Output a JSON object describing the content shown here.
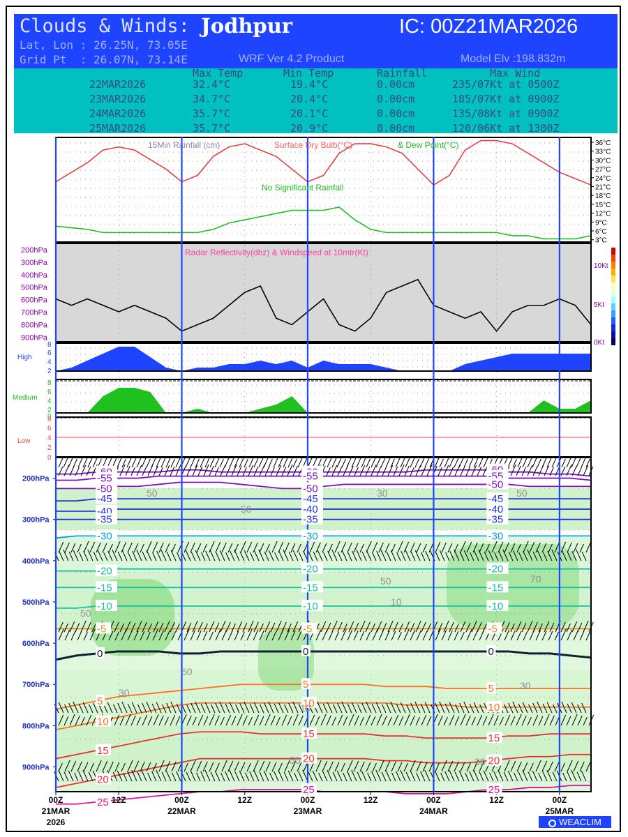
{
  "header": {
    "title_prefix": "Clouds & Winds:",
    "location": "Jodhpur",
    "ic": "IC: 00Z21MAR2026",
    "latlon": "Lat, Lon : 26.25N, 73.05E",
    "gridpt": "Grid Pt  : 26.07N, 73.14E",
    "product": "WRF Ver 4.2 Product",
    "elevation": "Model Elv :198.832m"
  },
  "summary": {
    "columns": [
      "Max Temp",
      "Min Temp",
      "Rainfall",
      "Max Wind"
    ],
    "rows": [
      {
        "date": "22MAR2026",
        "max_temp": "32.4°C",
        "min_temp": "19.4°C",
        "rain": "0.00cm",
        "wind": "235/07Kt at 0500Z"
      },
      {
        "date": "23MAR2026",
        "max_temp": "34.7°C",
        "min_temp": "20.4°C",
        "rain": "0.00cm",
        "wind": "185/07Kt at 0900Z"
      },
      {
        "date": "24MAR2026",
        "max_temp": "35.7°C",
        "min_temp": "20.1°C",
        "rain": "0.00cm",
        "wind": "135/08Kt at 0900Z"
      },
      {
        "date": "25MAR2026",
        "max_temp": "35.7°C",
        "min_temp": "20.9°C",
        "rain": "0.00cm",
        "wind": "120/06Kt at 1300Z"
      }
    ]
  },
  "colors": {
    "header_blue": "#1f44ff",
    "summary_teal": "#00c0c0",
    "temp_red": "#e84040",
    "dew_green": "#20c020",
    "high_cloud": "#1f44ff",
    "medium_cloud": "#20c020",
    "low_cloud": "#ff4040",
    "radar_bg": "#d8d8d8",
    "day_line": "#1f44ff"
  },
  "chart_data": [
    {
      "type": "line",
      "title_parts": [
        "15Min Rainfall (cm)",
        "Surface Dry Bulb(°C)",
        "& Dew Point(°C)"
      ],
      "annotation": "No Significant Rainfall",
      "x_hours": [
        0,
        6,
        9,
        12,
        15,
        18,
        21,
        24,
        27,
        30,
        33,
        36,
        39,
        42,
        45,
        48,
        51,
        54,
        57,
        60,
        63,
        66,
        69,
        72,
        75,
        78,
        81,
        84,
        87,
        90,
        93,
        96,
        99,
        102
      ],
      "series": [
        {
          "name": "Surface Dry Bulb(°C)",
          "values": [
            22,
            28,
            32,
            33,
            32,
            29,
            26,
            22,
            24,
            30,
            33,
            34,
            32,
            30,
            26,
            22,
            24,
            31,
            34,
            34,
            33,
            31,
            26,
            21,
            24,
            32,
            35,
            35,
            34,
            31,
            28,
            25,
            23,
            21
          ]
        },
        {
          "name": "Dew Point(°C)",
          "values": [
            8,
            7,
            6,
            6,
            6,
            6,
            6,
            6,
            6,
            7,
            9,
            10,
            11,
            12,
            13,
            13,
            13,
            14,
            10,
            7,
            6,
            6,
            6,
            6,
            6,
            6,
            6,
            6,
            5,
            5,
            4,
            4,
            4,
            5
          ]
        }
      ],
      "y_ticks": [
        "36°C",
        "33°C",
        "30°C",
        "27°C",
        "24°C",
        "21°C",
        "18°C",
        "15°C",
        "12°C",
        "9°C",
        "6°C",
        "3°C"
      ],
      "ylim": [
        3,
        36
      ]
    },
    {
      "type": "line",
      "title": "Radar Reflectivity(dbz) & Windspeed at 10mtr(Kt)",
      "y_left": [
        "200hPa",
        "300hPa",
        "400hPa",
        "500hPa",
        "600hPa",
        "700hPa",
        "800hPa",
        "900hPa"
      ],
      "y_right": [
        "10Kt",
        "5Kt",
        "0Kt"
      ],
      "x_hours": [
        0,
        3,
        6,
        9,
        12,
        15,
        18,
        21,
        24,
        27,
        30,
        33,
        36,
        39,
        42,
        45,
        48,
        51,
        54,
        57,
        60,
        63,
        66,
        69,
        72,
        75,
        78,
        81,
        84,
        87,
        90,
        93,
        96,
        99,
        102
      ],
      "series": [
        {
          "name": "Windspeed at 10mtr(Kt)",
          "values": [
            6,
            5,
            6,
            5,
            4,
            5,
            4,
            3,
            1,
            2,
            3,
            5,
            7,
            8,
            3,
            2,
            4,
            6,
            2,
            1,
            3,
            7,
            8,
            9,
            5,
            4,
            3,
            4,
            1,
            4,
            5,
            5,
            6,
            5,
            2
          ]
        }
      ],
      "ylim": [
        0,
        12
      ]
    },
    {
      "type": "area",
      "panels": [
        {
          "label": "High",
          "y_ticks": [
            "8",
            "6",
            "4",
            "2"
          ],
          "x_hours": [
            0,
            3,
            6,
            9,
            12,
            15,
            18,
            21,
            24,
            27,
            30,
            33,
            36,
            39,
            42,
            45,
            48,
            51,
            54,
            57,
            60,
            63,
            66,
            69,
            72,
            75,
            78,
            81,
            84,
            87,
            90,
            93,
            96,
            99,
            102
          ],
          "values": [
            0,
            1,
            3,
            5,
            7,
            7,
            4,
            1,
            0,
            1,
            1,
            2,
            2,
            3,
            2,
            3,
            1,
            3,
            2,
            2,
            2,
            1,
            0,
            0,
            0,
            0,
            2,
            3,
            4,
            5,
            5,
            5,
            5,
            5,
            5
          ]
        },
        {
          "label": "Medium",
          "y_ticks": [
            "8",
            "6",
            "4",
            "2",
            "0"
          ],
          "x_hours": [
            0,
            3,
            6,
            9,
            12,
            15,
            18,
            21,
            24,
            27,
            30,
            33,
            36,
            39,
            42,
            45,
            48,
            51,
            54,
            57,
            60,
            63,
            66,
            69,
            72,
            75,
            78,
            81,
            84,
            87,
            90,
            93,
            96,
            99,
            102
          ],
          "values": [
            0,
            0,
            0,
            4,
            6,
            6,
            5,
            0,
            0,
            1,
            0,
            0,
            0,
            1,
            2,
            4,
            0,
            0,
            0,
            0,
            0,
            0,
            0,
            0,
            0,
            0,
            0,
            0,
            0,
            0,
            0,
            3,
            1,
            1,
            3
          ]
        },
        {
          "label": "Low",
          "y_ticks": [
            "8",
            "6",
            "4",
            "2",
            "0"
          ],
          "values": [
            0,
            0,
            0,
            0,
            0,
            0,
            0,
            0,
            0,
            0,
            0,
            0,
            0,
            0,
            0,
            0,
            0,
            0,
            0,
            0,
            0,
            0,
            0,
            0,
            0,
            0,
            0,
            0,
            0,
            0,
            0,
            0,
            0,
            0,
            0
          ]
        }
      ]
    },
    {
      "type": "line",
      "y_labels": [
        "200hPa",
        "300hPa",
        "400hPa",
        "500hPa",
        "600hPa",
        "700hPa",
        "800hPa",
        "900hPa"
      ],
      "isotherms": [
        {
          "value": -60,
          "label": "-60",
          "levels": [
            190,
            190,
            185,
            185,
            185,
            185,
            180,
            180,
            185,
            185,
            185,
            185,
            185,
            185,
            185,
            185,
            185,
            185,
            180,
            180,
            180,
            180,
            185,
            185,
            190,
            190,
            195
          ]
        },
        {
          "value": -55,
          "label": "-55",
          "levels": [
            205,
            205,
            200,
            200,
            200,
            195,
            195,
            195,
            195,
            195,
            195,
            195,
            195,
            195,
            195,
            195,
            195,
            195,
            195,
            195,
            195,
            195,
            200,
            200,
            200,
            200,
            205
          ]
        },
        {
          "value": -50,
          "label": "-50",
          "levels": [
            225,
            225,
            225,
            220,
            220,
            215,
            210,
            210,
            210,
            215,
            220,
            225,
            225,
            220,
            215,
            215,
            215,
            215,
            215,
            215,
            215,
            215,
            215,
            220,
            220,
            220,
            220
          ]
        },
        {
          "value": -45,
          "label": "-45",
          "levels": [
            255,
            255,
            250,
            250,
            250,
            250,
            250,
            250,
            250,
            250,
            250,
            250,
            250,
            250,
            250,
            250,
            250,
            250,
            250,
            250,
            250,
            250,
            250,
            250,
            250,
            250,
            250
          ]
        },
        {
          "value": -40,
          "label": "-40",
          "levels": [
            280,
            280,
            280,
            275,
            275,
            275,
            275,
            275,
            275,
            275,
            275,
            275,
            275,
            275,
            275,
            275,
            275,
            275,
            275,
            275,
            275,
            275,
            275,
            275,
            275,
            275,
            275
          ]
        },
        {
          "value": -35,
          "label": "-35",
          "levels": [
            300,
            300,
            300,
            300,
            300,
            300,
            300,
            300,
            300,
            300,
            300,
            300,
            300,
            300,
            300,
            300,
            300,
            300,
            300,
            300,
            300,
            300,
            300,
            300,
            300,
            300,
            300
          ]
        },
        {
          "value": -30,
          "label": "-30",
          "levels": [
            345,
            340,
            340,
            340,
            340,
            340,
            340,
            340,
            340,
            340,
            340,
            340,
            340,
            340,
            340,
            340,
            340,
            340,
            340,
            340,
            340,
            340,
            340,
            340,
            340,
            340,
            340
          ]
        },
        {
          "value": -20,
          "label": "-20",
          "levels": [
            425,
            425,
            425,
            420,
            420,
            420,
            420,
            420,
            420,
            420,
            420,
            420,
            420,
            420,
            420,
            420,
            420,
            420,
            420,
            420,
            420,
            420,
            420,
            420,
            420,
            420,
            420
          ]
        },
        {
          "value": -15,
          "label": "-15",
          "levels": [
            465,
            465,
            465,
            465,
            465,
            465,
            465,
            465,
            465,
            465,
            465,
            465,
            465,
            465,
            465,
            465,
            465,
            465,
            465,
            465,
            465,
            465,
            465,
            465,
            465,
            465,
            465
          ]
        },
        {
          "value": -10,
          "label": "-10",
          "levels": [
            515,
            515,
            510,
            510,
            510,
            510,
            510,
            510,
            510,
            510,
            510,
            510,
            510,
            510,
            510,
            510,
            510,
            510,
            510,
            510,
            510,
            510,
            510,
            510,
            510,
            510,
            510
          ]
        },
        {
          "value": -5,
          "label": "-5",
          "levels": [
            565,
            565,
            565,
            565,
            565,
            565,
            565,
            565,
            565,
            565,
            565,
            565,
            565,
            565,
            565,
            565,
            565,
            565,
            565,
            565,
            565,
            565,
            565,
            565,
            565,
            565,
            565
          ]
        },
        {
          "value": 0,
          "label": "0",
          "levels": [
            640,
            630,
            625,
            620,
            620,
            620,
            625,
            625,
            620,
            620,
            620,
            620,
            620,
            620,
            620,
            620,
            620,
            620,
            620,
            620,
            620,
            620,
            620,
            625,
            625,
            630,
            635
          ]
        },
        {
          "value": 5,
          "label": "5",
          "levels": [
            760,
            750,
            740,
            730,
            725,
            720,
            715,
            710,
            705,
            700,
            700,
            700,
            700,
            700,
            700,
            700,
            705,
            705,
            705,
            710,
            710,
            710,
            710,
            710,
            710,
            710,
            710
          ]
        },
        {
          "value": 10,
          "label": "10",
          "levels": [
            810,
            800,
            790,
            780,
            770,
            760,
            750,
            745,
            745,
            745,
            745,
            745,
            745,
            745,
            745,
            745,
            745,
            750,
            750,
            750,
            755,
            755,
            755,
            755,
            755,
            755,
            755
          ]
        },
        {
          "value": 15,
          "label": "15",
          "levels": [
            880,
            870,
            860,
            850,
            840,
            830,
            820,
            815,
            815,
            815,
            820,
            820,
            820,
            820,
            820,
            820,
            825,
            825,
            830,
            830,
            830,
            830,
            825,
            825,
            820,
            820,
            820
          ]
        },
        {
          "value": 20,
          "label": "20",
          "levels": [
            950,
            940,
            930,
            920,
            910,
            900,
            890,
            880,
            880,
            880,
            880,
            880,
            880,
            880,
            880,
            880,
            885,
            885,
            890,
            890,
            890,
            885,
            880,
            875,
            875,
            870,
            870
          ]
        },
        {
          "value": 25,
          "label": "25",
          "levels": [
            990,
            990,
            985,
            980,
            975,
            970,
            965,
            960,
            960,
            955,
            955,
            955,
            955,
            960,
            960,
            960,
            960,
            965,
            965,
            965,
            960,
            955,
            955,
            950,
            950,
            945,
            945
          ]
        }
      ],
      "humidity_labels": [
        "50",
        "30",
        "10",
        "70"
      ],
      "ylim": [
        150,
        960
      ]
    }
  ],
  "x_axis": {
    "hour_labels": [
      "00Z",
      "12Z",
      "00Z",
      "12Z",
      "00Z",
      "12Z",
      "00Z",
      "12Z",
      "00Z"
    ],
    "date_labels": [
      "21MAR",
      "22MAR",
      "23MAR",
      "24MAR",
      "25MAR"
    ],
    "year": "2026",
    "range_hours": [
      0,
      102
    ]
  },
  "watermark": "WEACLIM"
}
